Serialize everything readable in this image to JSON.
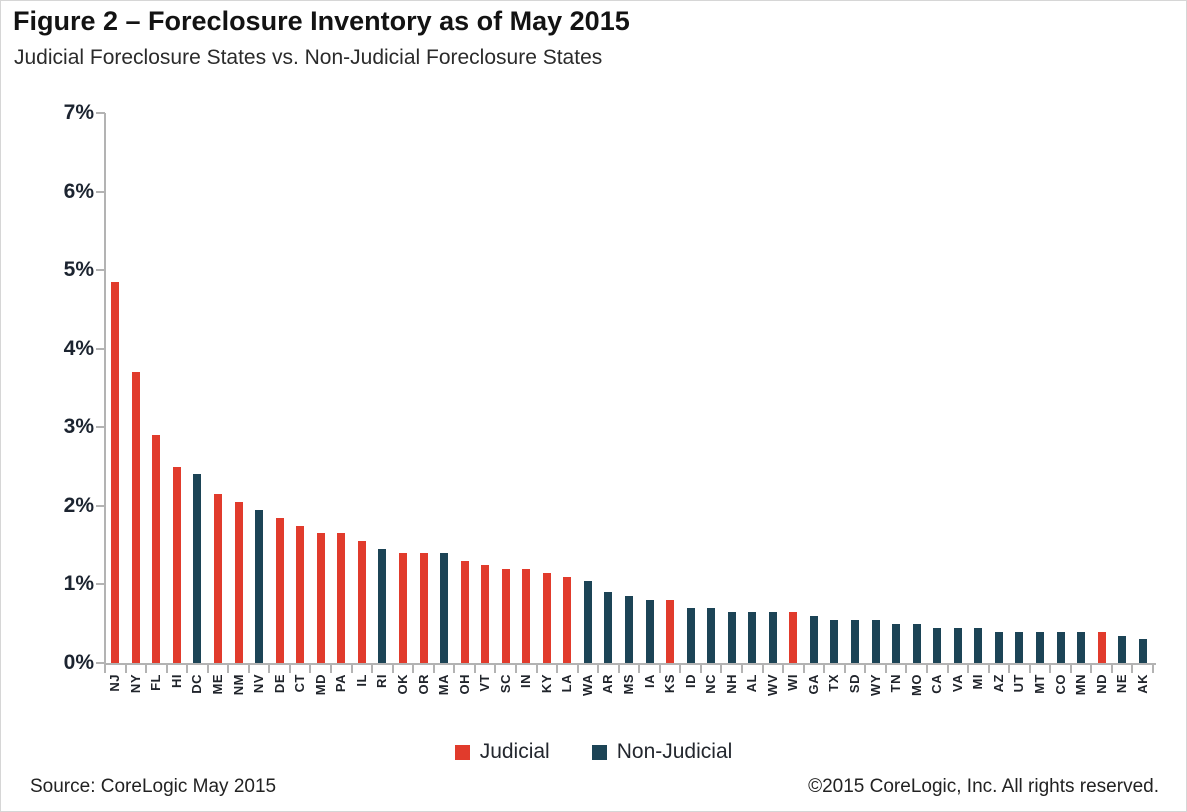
{
  "page": {
    "title": "Figure 2 – Foreclosure Inventory as of May 2015",
    "subtitle": "Judicial Foreclosure States vs. Non-Judicial Foreclosure States"
  },
  "footer": {
    "source": "Source: CoreLogic May 2015",
    "copyright": "©2015 CoreLogic, Inc. All rights reserved."
  },
  "colors": {
    "judicial": "#E13B2C",
    "non_judicial": "#1C4456",
    "axis_gray": "#B3B3B3"
  },
  "chart_data": {
    "type": "bar",
    "title": "Foreclosure Inventory as of May 2015",
    "xlabel": "",
    "ylabel": "",
    "ylim": [
      0,
      7
    ],
    "ytick_values": [
      0,
      1,
      2,
      3,
      4,
      5,
      6,
      7
    ],
    "ytick_labels": [
      "0%",
      "1%",
      "2%",
      "3%",
      "4%",
      "5%",
      "6%",
      "7%"
    ],
    "grid": false,
    "legend_position": "bottom-center",
    "series": [
      {
        "name": "Judicial",
        "color": "#E13B2C"
      },
      {
        "name": "Non-Judicial",
        "color": "#1C4456"
      }
    ],
    "points": [
      {
        "state": "NJ",
        "value": 4.85,
        "series": "Judicial"
      },
      {
        "state": "NY",
        "value": 3.7,
        "series": "Judicial"
      },
      {
        "state": "FL",
        "value": 2.9,
        "series": "Judicial"
      },
      {
        "state": "HI",
        "value": 2.5,
        "series": "Judicial"
      },
      {
        "state": "DC",
        "value": 2.4,
        "series": "Non-Judicial"
      },
      {
        "state": "ME",
        "value": 2.15,
        "series": "Judicial"
      },
      {
        "state": "NM",
        "value": 2.05,
        "series": "Judicial"
      },
      {
        "state": "NV",
        "value": 1.95,
        "series": "Non-Judicial"
      },
      {
        "state": "DE",
        "value": 1.85,
        "series": "Judicial"
      },
      {
        "state": "CT",
        "value": 1.75,
        "series": "Judicial"
      },
      {
        "state": "MD",
        "value": 1.65,
        "series": "Judicial"
      },
      {
        "state": "PA",
        "value": 1.65,
        "series": "Judicial"
      },
      {
        "state": "IL",
        "value": 1.55,
        "series": "Judicial"
      },
      {
        "state": "RI",
        "value": 1.45,
        "series": "Non-Judicial"
      },
      {
        "state": "OK",
        "value": 1.4,
        "series": "Judicial"
      },
      {
        "state": "OR",
        "value": 1.4,
        "series": "Judicial"
      },
      {
        "state": "MA",
        "value": 1.4,
        "series": "Non-Judicial"
      },
      {
        "state": "OH",
        "value": 1.3,
        "series": "Judicial"
      },
      {
        "state": "VT",
        "value": 1.25,
        "series": "Judicial"
      },
      {
        "state": "SC",
        "value": 1.2,
        "series": "Judicial"
      },
      {
        "state": "IN",
        "value": 1.2,
        "series": "Judicial"
      },
      {
        "state": "KY",
        "value": 1.15,
        "series": "Judicial"
      },
      {
        "state": "LA",
        "value": 1.1,
        "series": "Judicial"
      },
      {
        "state": "WA",
        "value": 1.05,
        "series": "Non-Judicial"
      },
      {
        "state": "AR",
        "value": 0.9,
        "series": "Non-Judicial"
      },
      {
        "state": "MS",
        "value": 0.85,
        "series": "Non-Judicial"
      },
      {
        "state": "IA",
        "value": 0.8,
        "series": "Non-Judicial"
      },
      {
        "state": "KS",
        "value": 0.8,
        "series": "Judicial"
      },
      {
        "state": "ID",
        "value": 0.7,
        "series": "Non-Judicial"
      },
      {
        "state": "NC",
        "value": 0.7,
        "series": "Non-Judicial"
      },
      {
        "state": "NH",
        "value": 0.65,
        "series": "Non-Judicial"
      },
      {
        "state": "AL",
        "value": 0.65,
        "series": "Non-Judicial"
      },
      {
        "state": "WV",
        "value": 0.65,
        "series": "Non-Judicial"
      },
      {
        "state": "WI",
        "value": 0.65,
        "series": "Judicial"
      },
      {
        "state": "GA",
        "value": 0.6,
        "series": "Non-Judicial"
      },
      {
        "state": "TX",
        "value": 0.55,
        "series": "Non-Judicial"
      },
      {
        "state": "SD",
        "value": 0.55,
        "series": "Non-Judicial"
      },
      {
        "state": "WY",
        "value": 0.55,
        "series": "Non-Judicial"
      },
      {
        "state": "TN",
        "value": 0.5,
        "series": "Non-Judicial"
      },
      {
        "state": "MO",
        "value": 0.5,
        "series": "Non-Judicial"
      },
      {
        "state": "CA",
        "value": 0.45,
        "series": "Non-Judicial"
      },
      {
        "state": "VA",
        "value": 0.45,
        "series": "Non-Judicial"
      },
      {
        "state": "MI",
        "value": 0.45,
        "series": "Non-Judicial"
      },
      {
        "state": "AZ",
        "value": 0.4,
        "series": "Non-Judicial"
      },
      {
        "state": "UT",
        "value": 0.4,
        "series": "Non-Judicial"
      },
      {
        "state": "MT",
        "value": 0.4,
        "series": "Non-Judicial"
      },
      {
        "state": "CO",
        "value": 0.4,
        "series": "Non-Judicial"
      },
      {
        "state": "MN",
        "value": 0.4,
        "series": "Non-Judicial"
      },
      {
        "state": "ND",
        "value": 0.4,
        "series": "Judicial"
      },
      {
        "state": "NE",
        "value": 0.35,
        "series": "Non-Judicial"
      },
      {
        "state": "AK",
        "value": 0.3,
        "series": "Non-Judicial"
      }
    ]
  }
}
